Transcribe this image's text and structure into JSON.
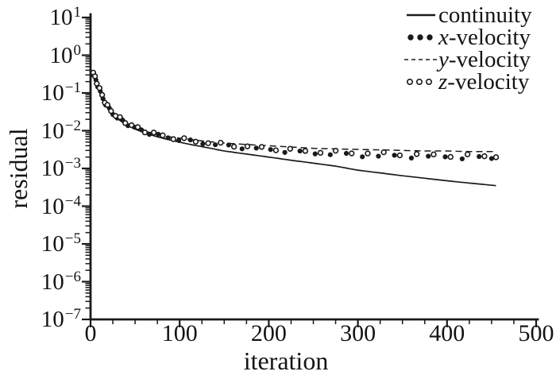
{
  "figure": {
    "background": "#ffffff",
    "ink_color": "#1a1a1a"
  },
  "chart_data": {
    "type": "line",
    "title": "",
    "xlabel": "iteration",
    "ylabel": "residual",
    "x_axis": {
      "min": 0,
      "max": 500,
      "major_ticks": [
        0,
        100,
        200,
        300,
        400,
        500
      ],
      "minor_tick_step": 25
    },
    "y_axis": {
      "scale": "log10",
      "base_label": "10",
      "tick_exponents": [
        1,
        0,
        -1,
        -2,
        -3,
        -4,
        -5,
        -6,
        -7
      ],
      "ylim": [
        1e-07,
        10
      ]
    },
    "grid": "off",
    "legend_position": "top-right",
    "legend": [
      {
        "symbol": "solid-line",
        "italic": "",
        "label": "continuity"
      },
      {
        "symbol": "filled-dots",
        "italic": "x",
        "label": "-velocity"
      },
      {
        "symbol": "dashed-line",
        "italic": "y",
        "label": "-velocity"
      },
      {
        "symbol": "open-circles",
        "italic": "z",
        "label": "-velocity"
      }
    ],
    "x": [
      3,
      6,
      10,
      14,
      18,
      22,
      27,
      33,
      40,
      50,
      60,
      75,
      90,
      110,
      130,
      150,
      175,
      200,
      225,
      250,
      275,
      300,
      325,
      350,
      375,
      400,
      425,
      450,
      455
    ],
    "series": [
      {
        "name": "continuity",
        "style": "solid",
        "values": [
          0.3,
          0.19,
          0.11,
          0.065,
          0.043,
          0.032,
          0.024,
          0.0185,
          0.0145,
          0.011,
          0.0089,
          0.0069,
          0.0056,
          0.0044,
          0.0036,
          0.0029,
          0.0024,
          0.002,
          0.00165,
          0.00138,
          0.00115,
          0.0009,
          0.00076,
          0.00064,
          0.00055,
          0.00047,
          0.00041,
          0.00036,
          0.00035
        ]
      },
      {
        "name": "x-velocity",
        "style": "filled-dots",
        "marker_iterations": [
          2,
          4,
          6,
          8,
          11,
          14,
          17,
          21,
          25,
          30,
          36,
          42,
          49,
          57,
          66,
          76,
          87,
          99,
          112,
          126,
          140,
          155,
          170,
          186,
          202,
          218,
          235,
          252,
          269,
          287,
          305,
          323,
          341,
          360,
          379,
          398,
          417,
          436,
          450
        ],
        "values": [
          0.33,
          0.21,
          0.12,
          0.07,
          0.046,
          0.034,
          0.025,
          0.0195,
          0.0155,
          0.0118,
          0.0095,
          0.0076,
          0.0063,
          0.0053,
          0.0046,
          0.004,
          0.0035,
          0.0031,
          0.0028,
          0.0025,
          0.0024,
          0.0022,
          0.0021,
          0.0021,
          0.002,
          0.002,
          0.0019,
          0.0019,
          0.0019
        ]
      },
      {
        "name": "y-velocity",
        "style": "dashed",
        "values": [
          0.3,
          0.2,
          0.115,
          0.068,
          0.045,
          0.0335,
          0.025,
          0.02,
          0.016,
          0.0122,
          0.0099,
          0.008,
          0.0068,
          0.0059,
          0.0052,
          0.0047,
          0.0043,
          0.004,
          0.0037,
          0.0034,
          0.0033,
          0.0032,
          0.0031,
          0.003,
          0.0029,
          0.0029,
          0.0028,
          0.0028,
          0.0028
        ]
      },
      {
        "name": "z-velocity",
        "style": "open-circles",
        "marker_iterations": [
          3,
          5,
          7,
          10,
          13,
          16,
          19,
          23,
          28,
          33,
          39,
          46,
          53,
          61,
          71,
          81,
          93,
          105,
          118,
          132,
          146,
          161,
          176,
          192,
          208,
          224,
          241,
          258,
          275,
          293,
          311,
          329,
          347,
          366,
          385,
          404,
          423,
          442,
          455
        ],
        "values": [
          0.35,
          0.22,
          0.13,
          0.075,
          0.048,
          0.036,
          0.027,
          0.021,
          0.0165,
          0.0125,
          0.01,
          0.008,
          0.0066,
          0.0056,
          0.0049,
          0.0043,
          0.0038,
          0.0034,
          0.0031,
          0.0028,
          0.0027,
          0.0026,
          0.0025,
          0.0024,
          0.0023,
          0.0022,
          0.0022,
          0.0021,
          0.0021
        ]
      }
    ]
  }
}
